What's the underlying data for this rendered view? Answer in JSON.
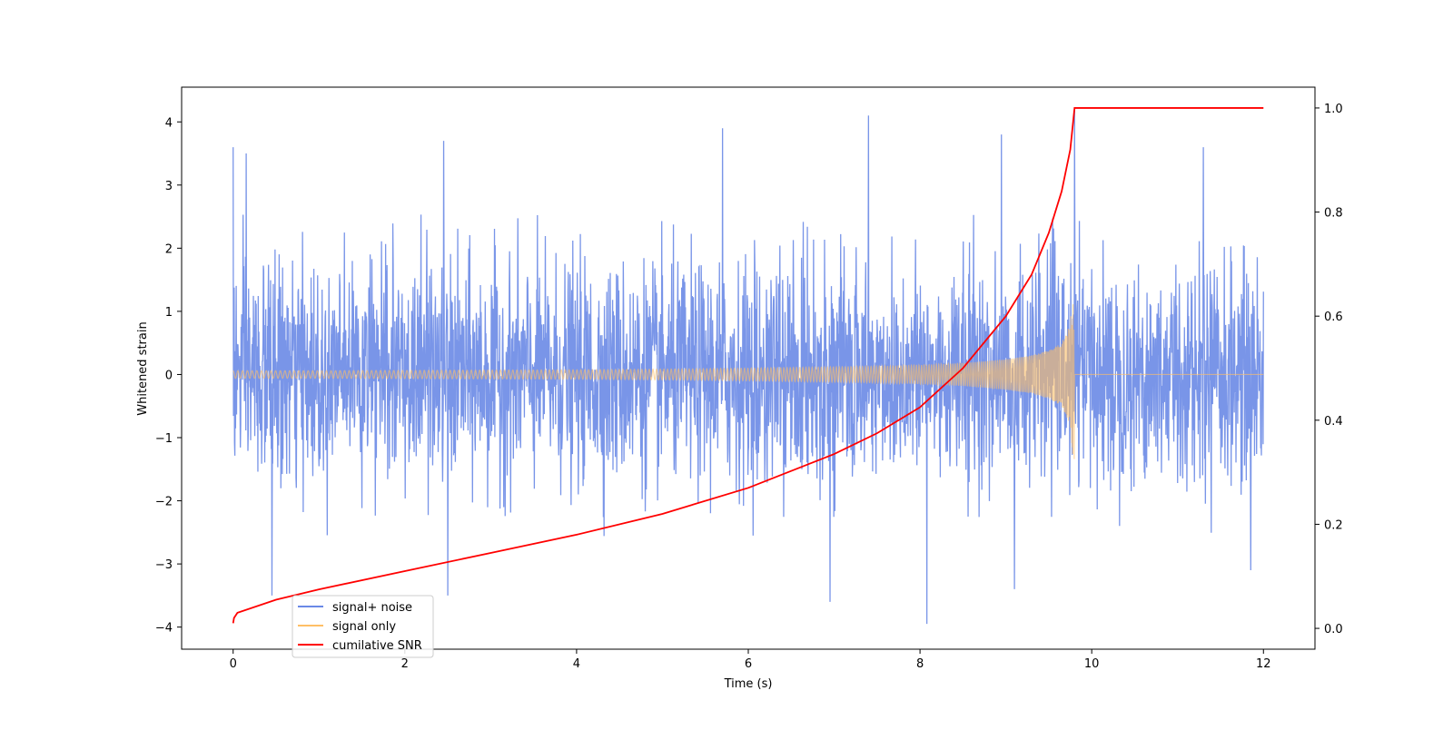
{
  "chart_data": {
    "type": "line",
    "title": "",
    "xlabel": "Time (s)",
    "ylabel": "Whitened strain",
    "y2label": "",
    "xlim": [
      -0.6,
      12.6
    ],
    "ylim": [
      -4.35,
      4.55
    ],
    "y2lim": [
      -0.04,
      1.04
    ],
    "xticks": [
      0,
      2,
      4,
      6,
      8,
      10,
      12
    ],
    "yticks": [
      -4,
      -3,
      -2,
      -1,
      0,
      1,
      2,
      3,
      4
    ],
    "y2ticks": [
      0.0,
      0.2,
      0.4,
      0.6,
      0.8,
      1.0
    ],
    "y2ticklabels": [
      "0.0",
      "0.2",
      "0.4",
      "0.6",
      "0.8",
      "1.0"
    ],
    "grid": false,
    "legend_position": "lower-left",
    "series": [
      {
        "name": "signal+ noise",
        "color": "#6a89e6",
        "axis": "left",
        "description_values": {
          "time_range": [
            0,
            12
          ],
          "typical_envelope": [
            -2.0,
            2.2
          ],
          "notable_peaks": [
            {
              "x": 0.0,
              "y": 3.6
            },
            {
              "x": 0.15,
              "y": 3.5
            },
            {
              "x": 2.45,
              "y": 3.7
            },
            {
              "x": 5.7,
              "y": 3.9
            },
            {
              "x": 7.4,
              "y": 4.1
            },
            {
              "x": 8.95,
              "y": 3.8
            },
            {
              "x": 9.8,
              "y": 4.2
            },
            {
              "x": 11.3,
              "y": 3.6
            }
          ],
          "notable_troughs": [
            {
              "x": 0.45,
              "y": -3.5
            },
            {
              "x": 2.5,
              "y": -3.5
            },
            {
              "x": 6.95,
              "y": -3.6
            },
            {
              "x": 8.08,
              "y": -3.95
            },
            {
              "x": 9.1,
              "y": -3.4
            },
            {
              "x": 11.85,
              "y": -3.1
            }
          ]
        }
      },
      {
        "name": "signal only",
        "color": "#ffbf66",
        "axis": "left",
        "amplitude_envelope": {
          "x": [
            0,
            1,
            2,
            3,
            4,
            5,
            6,
            7,
            7.5,
            8,
            8.5,
            9,
            9.3,
            9.5,
            9.65,
            9.75,
            9.8,
            9.81,
            12
          ],
          "amp": [
            0.06,
            0.06,
            0.065,
            0.07,
            0.075,
            0.085,
            0.1,
            0.12,
            0.13,
            0.15,
            0.18,
            0.24,
            0.3,
            0.38,
            0.5,
            0.8,
            1.6,
            0.0,
            0.0
          ]
        }
      },
      {
        "name": "cumilative SNR",
        "color": "#ff0000",
        "axis": "right",
        "x": [
          0,
          0.01,
          0.05,
          0.5,
          1,
          2,
          3,
          4,
          5,
          6,
          7,
          7.5,
          8,
          8.5,
          9,
          9.3,
          9.5,
          9.65,
          9.75,
          9.8,
          12
        ],
        "y": [
          0.01,
          0.02,
          0.03,
          0.055,
          0.075,
          0.11,
          0.145,
          0.18,
          0.22,
          0.27,
          0.335,
          0.375,
          0.425,
          0.5,
          0.6,
          0.68,
          0.76,
          0.84,
          0.92,
          1.0,
          1.0
        ]
      }
    ]
  }
}
